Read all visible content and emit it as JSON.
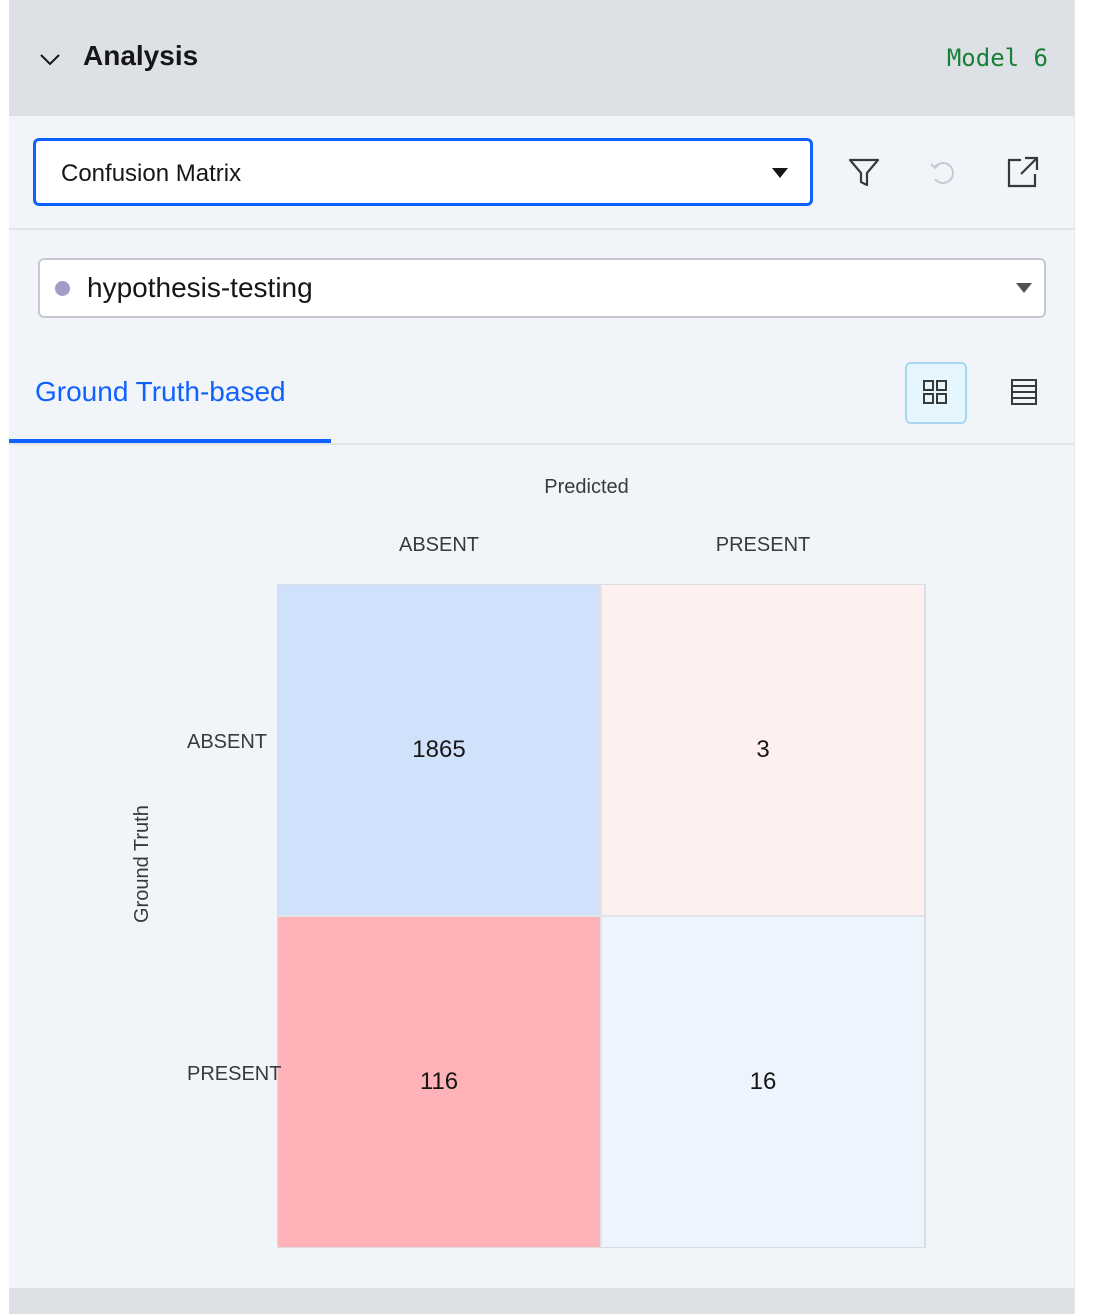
{
  "header": {
    "title": "Analysis",
    "model": "Model 6",
    "icons": {
      "collapse": "chevron-down-icon"
    }
  },
  "toolbar": {
    "view_select": {
      "value": "Confusion Matrix"
    },
    "icons": [
      "filter-icon",
      "reset-icon",
      "open-external-icon"
    ]
  },
  "dataset_select": {
    "value": "hypothesis-testing",
    "dot_color": "#a59bc8"
  },
  "tabs": [
    {
      "label": "Ground Truth-based",
      "active": true
    }
  ],
  "view_toggle": {
    "active": "grid-view-icon",
    "options": [
      "grid-view-icon",
      "table-view-icon"
    ]
  },
  "chart_data": {
    "type": "heatmap",
    "xlabel": "Predicted",
    "ylabel": "Ground Truth",
    "x_categories": [
      "ABSENT",
      "PRESENT"
    ],
    "y_categories": [
      "ABSENT",
      "PRESENT"
    ],
    "values": [
      [
        1865,
        3
      ],
      [
        116,
        16
      ]
    ],
    "cell_colors": [
      [
        "#d0e2fb",
        "#fff0f0"
      ],
      [
        "#ffb3b8",
        "#edf4fd"
      ]
    ]
  },
  "colors": {
    "accent": "#0f62fe",
    "model_text": "#198038"
  }
}
